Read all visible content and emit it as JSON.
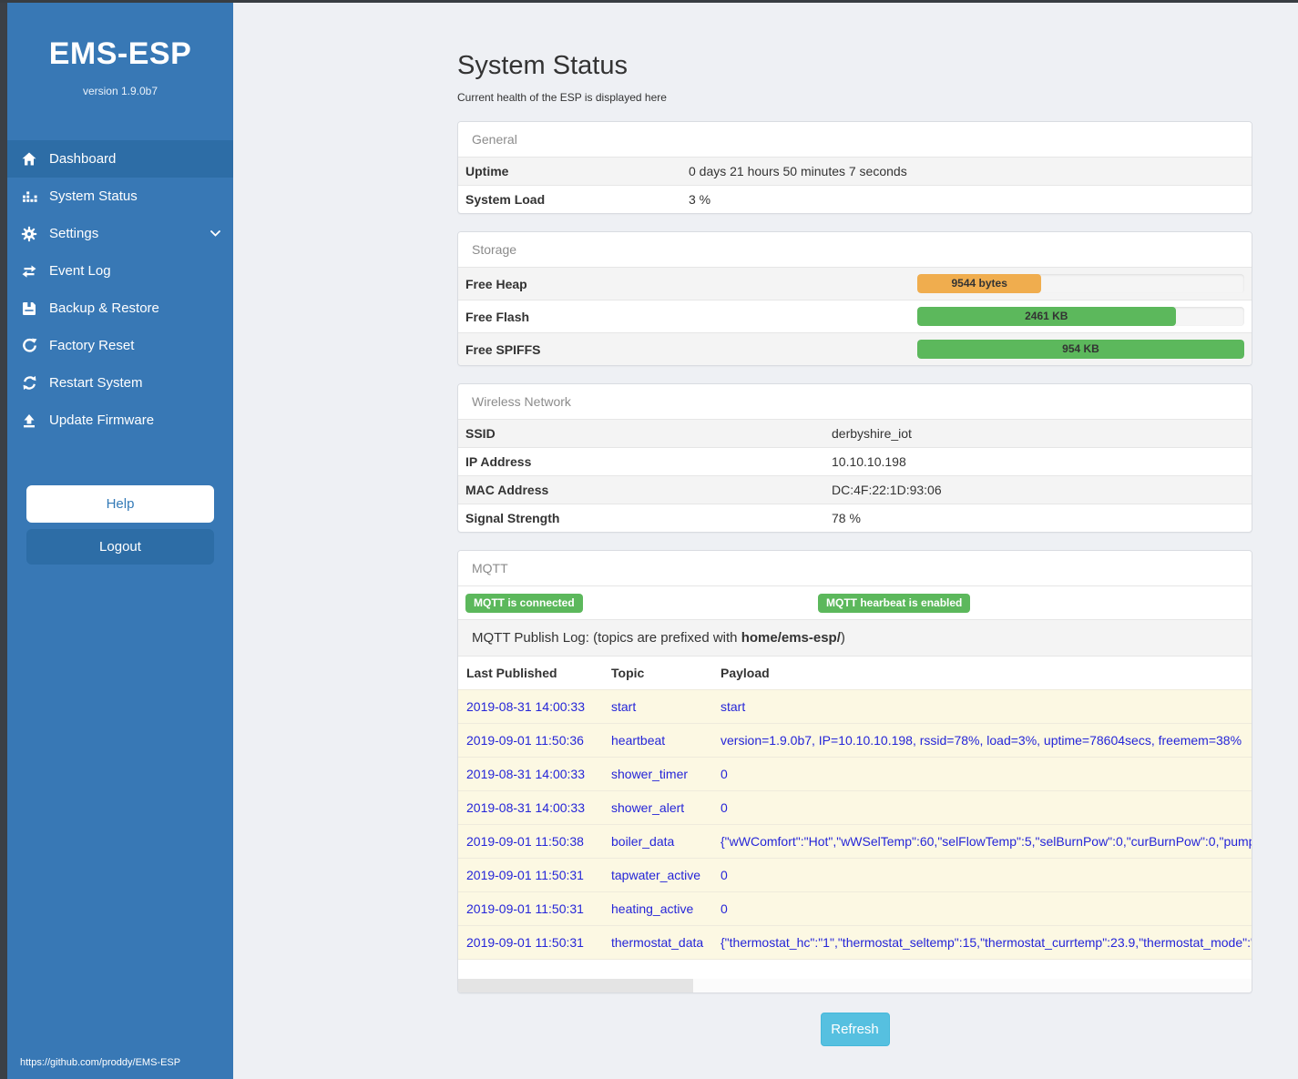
{
  "app": {
    "title": "EMS-ESP",
    "version": "version 1.9.0b7",
    "footer_link": "https://github.com/proddy/EMS-ESP"
  },
  "sidebar": {
    "items": [
      {
        "label": "Dashboard",
        "icon": "home-icon",
        "active": true
      },
      {
        "label": "System Status",
        "icon": "system-status-icon",
        "active": false
      },
      {
        "label": "Settings",
        "icon": "gear-icon",
        "active": false,
        "has_chevron": true
      },
      {
        "label": "Event Log",
        "icon": "exchange-icon",
        "active": false
      },
      {
        "label": "Backup & Restore",
        "icon": "save-icon",
        "active": false
      },
      {
        "label": "Factory Reset",
        "icon": "rotate-icon",
        "active": false
      },
      {
        "label": "Restart System",
        "icon": "refresh-icon",
        "active": false
      },
      {
        "label": "Update Firmware",
        "icon": "upload-icon",
        "active": false
      }
    ],
    "help_label": "Help",
    "logout_label": "Logout"
  },
  "page": {
    "title": "System Status",
    "subtitle": "Current health of the ESP is displayed here",
    "refresh_label": "Refresh"
  },
  "panels": {
    "general": {
      "title": "General",
      "rows": [
        {
          "label": "Uptime",
          "value": "0 days 21 hours 50 minutes 7 seconds"
        },
        {
          "label": "System Load",
          "value": "3 %"
        }
      ]
    },
    "storage": {
      "title": "Storage",
      "rows": [
        {
          "label": "Free Heap",
          "value": "9544 bytes",
          "percent": 38,
          "color": "#f0ad4e"
        },
        {
          "label": "Free Flash",
          "value": "2461 KB",
          "percent": 79,
          "color": "#5cb85c"
        },
        {
          "label": "Free SPIFFS",
          "value": "954 KB",
          "percent": 100,
          "color": "#5cb85c"
        }
      ]
    },
    "wireless": {
      "title": "Wireless Network",
      "rows": [
        {
          "label": "SSID",
          "value": "derbyshire_iot"
        },
        {
          "label": "IP Address",
          "value": "10.10.10.198"
        },
        {
          "label": "MAC Address",
          "value": "DC:4F:22:1D:93:06"
        },
        {
          "label": "Signal Strength",
          "value": "78 %"
        }
      ]
    },
    "mqtt": {
      "title": "MQTT",
      "badges": [
        "MQTT is connected",
        "MQTT hearbeat is enabled"
      ],
      "publish_log_prefix": "MQTT Publish Log: (topics are prefixed with ",
      "publish_log_bold": "home/ems-esp/",
      "publish_log_suffix": ")",
      "table": {
        "headers": [
          "Last Published",
          "Topic",
          "Payload"
        ],
        "rows": [
          {
            "time": "2019-08-31 14:00:33",
            "topic": "start",
            "payload": "start"
          },
          {
            "time": "2019-09-01 11:50:36",
            "topic": "heartbeat",
            "payload": "version=1.9.0b7, IP=10.10.10.198, rssid=78%, load=3%, uptime=78604secs, freemem=38%"
          },
          {
            "time": "2019-08-31 14:00:33",
            "topic": "shower_timer",
            "payload": "0"
          },
          {
            "time": "2019-08-31 14:00:33",
            "topic": "shower_alert",
            "payload": "0"
          },
          {
            "time": "2019-09-01 11:50:38",
            "topic": "boiler_data",
            "payload": "{\"wWComfort\":\"Hot\",\"wWSelTemp\":60,\"selFlowTemp\":5,\"selBurnPow\":0,\"curBurnPow\":0,\"pump"
          },
          {
            "time": "2019-09-01 11:50:31",
            "topic": "tapwater_active",
            "payload": "0"
          },
          {
            "time": "2019-09-01 11:50:31",
            "topic": "heating_active",
            "payload": "0"
          },
          {
            "time": "2019-09-01 11:50:31",
            "topic": "thermostat_data",
            "payload": "{\"thermostat_hc\":\"1\",\"thermostat_seltemp\":15,\"thermostat_currtemp\":23.9,\"thermostat_mode\":\""
          }
        ]
      }
    }
  },
  "colors": {
    "sidebar_blue": "#3878b5",
    "sidebar_active_blue": "#2d6da6",
    "sidebar_edge_dark": "#3b4046",
    "success_green": "#5cb85c",
    "warning_orange": "#f0ad4e",
    "info_refresh_blue": "#56c0e0",
    "mqtt_row_cream": "#fcf8e3",
    "mqtt_text_blue": "#2525d8"
  }
}
